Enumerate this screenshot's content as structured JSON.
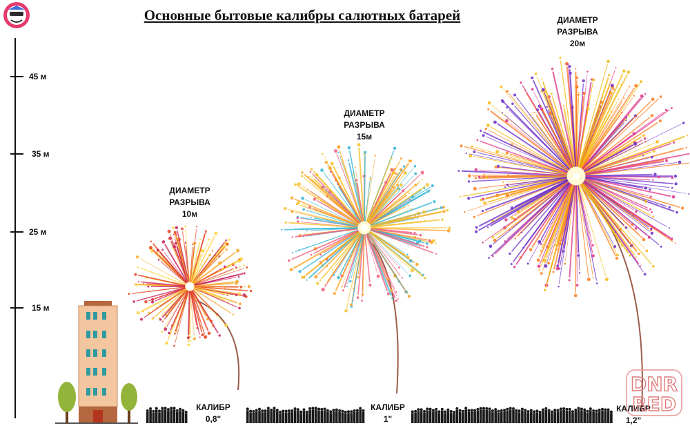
{
  "title": "Основные бытовые калибры салютных батарей",
  "scale": {
    "ticks": [
      "45 м",
      "35 м",
      "25 м",
      "15 м"
    ]
  },
  "fireworks": [
    {
      "diameter_line1": "ДИАМЕТР",
      "diameter_line2": "РАЗРЫВА",
      "diameter_value": "10м",
      "caliber_label": "КАЛИБР",
      "caliber_value": "0,8\"",
      "colors": [
        "#e8401c",
        "#f5a623",
        "#c81e5a",
        "#ffd23f"
      ]
    },
    {
      "diameter_line1": "ДИАМЕТР",
      "diameter_line2": "РАЗРЫВА",
      "diameter_value": "15м",
      "caliber_label": "КАЛИБР",
      "caliber_value": "1\"",
      "colors": [
        "#f6c12b",
        "#ee5a7a",
        "#35b6d8",
        "#ff9f1a"
      ]
    },
    {
      "diameter_line1": "ДИАМЕТР",
      "diameter_line2": "РАЗРЫВА",
      "diameter_value": "20м",
      "caliber_label": "КАЛИБР",
      "caliber_value": "1,2\"",
      "colors": [
        "#f5b90f",
        "#e0348a",
        "#6a2bc9",
        "#ff7a1a"
      ]
    }
  ],
  "watermark": {
    "line1": "DNR",
    "line2": "RED"
  },
  "colors": {
    "building": "#f4c6a0",
    "window": "#2f9aa0",
    "roof": "#b5673f",
    "door": "#b3351e",
    "tree": "#93b43a",
    "trunk": "#6b3e1f"
  }
}
